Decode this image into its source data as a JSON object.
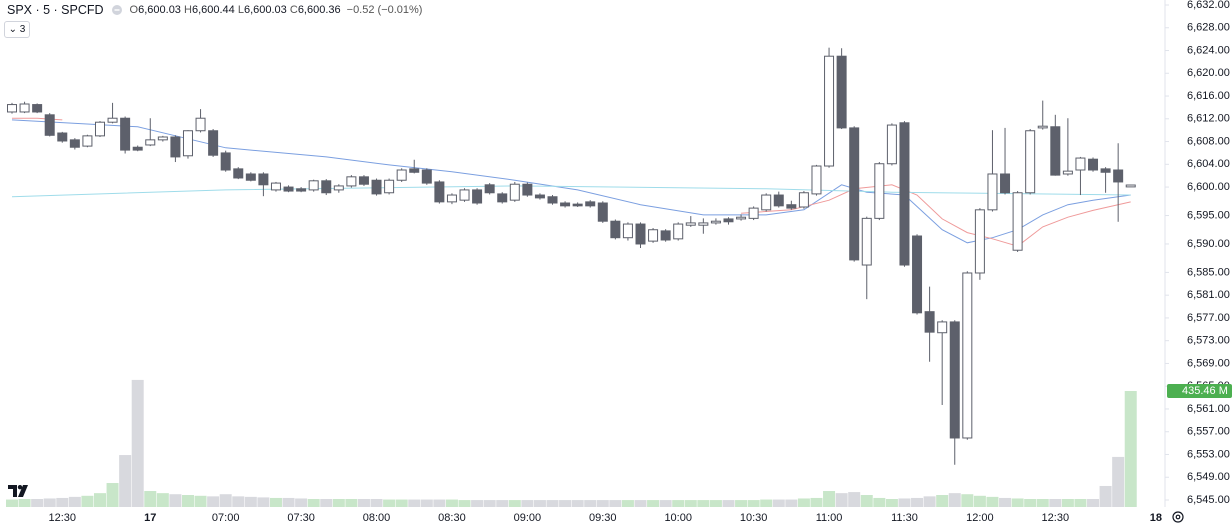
{
  "chart_data": {
    "type": "candlestick",
    "symbol": "SPX · 5 · SPCFD",
    "legend": [
      {
        "key": "O",
        "value": "6,600.03"
      },
      {
        "key": "H",
        "value": "6,600.44"
      },
      {
        "key": "L",
        "value": "6,600.03"
      },
      {
        "key": "C",
        "value": "6,600.36"
      }
    ],
    "change": "−0.52 (−0.01%)",
    "indicator_count": "3",
    "up_color": "#ffffff",
    "down_color": "#5d606b",
    "outline_color": "#5d606b",
    "volume_up_color": "#c8e6c9",
    "volume_down_color": "#d8d9de",
    "ylim": [
      6545,
      6632
    ],
    "yticks": [
      {
        "value": 6632,
        "label": "6,632.00"
      },
      {
        "value": 6628,
        "label": "6,628.00"
      },
      {
        "value": 6624,
        "label": "6,624.00"
      },
      {
        "value": 6620,
        "label": "6,620.00"
      },
      {
        "value": 6616,
        "label": "6,616.00"
      },
      {
        "value": 6612,
        "label": "6,612.00"
      },
      {
        "value": 6608,
        "label": "6,608.00"
      },
      {
        "value": 6604,
        "label": "6,604.00"
      },
      {
        "value": 6600,
        "label": "6,600.00"
      },
      {
        "value": 6595,
        "label": "6,595.00"
      },
      {
        "value": 6590,
        "label": "6,590.00"
      },
      {
        "value": 6585,
        "label": "6,585.00"
      },
      {
        "value": 6581,
        "label": "6,581.00"
      },
      {
        "value": 6577,
        "label": "6,577.00"
      },
      {
        "value": 6573,
        "label": "6,573.00"
      },
      {
        "value": 6569,
        "label": "6,569.00"
      },
      {
        "value": 6565,
        "label": "6,565.00"
      },
      {
        "value": 6561,
        "label": "6,561.00"
      },
      {
        "value": 6557,
        "label": "6,557.00"
      },
      {
        "value": 6553,
        "label": "6,553.00"
      },
      {
        "value": 6549,
        "label": "6,549.00"
      },
      {
        "value": 6545,
        "label": "6,545.00"
      }
    ],
    "categories": [
      null,
      null,
      null,
      null,
      "12:30",
      null,
      null,
      null,
      null,
      null,
      null,
      "17",
      null,
      null,
      null,
      null,
      null,
      "07:00",
      null,
      null,
      null,
      null,
      null,
      "07:30",
      null,
      null,
      null,
      null,
      null,
      "08:00",
      null,
      null,
      null,
      null,
      null,
      "08:30",
      null,
      null,
      null,
      null,
      null,
      "09:00",
      null,
      null,
      null,
      null,
      null,
      "09:30",
      null,
      null,
      null,
      null,
      null,
      "10:00",
      null,
      null,
      null,
      null,
      null,
      "10:30",
      null,
      null,
      null,
      null,
      null,
      "11:00",
      null,
      null,
      null,
      null,
      null,
      "11:30",
      null,
      null,
      null,
      null,
      null,
      "12:00",
      null,
      null,
      null,
      null,
      null,
      "12:30",
      null,
      null,
      null,
      null,
      null,
      null,
      null,
      "18"
    ],
    "bold_categories": [
      "17",
      "18"
    ],
    "ohlc": [
      [
        6613.2,
        6614.8,
        6612.9,
        6614.5
      ],
      [
        6613.2,
        6615.0,
        6613.0,
        6614.6
      ],
      [
        6614.5,
        6614.7,
        6613.0,
        6613.2
      ],
      [
        6612.7,
        6613.0,
        6608.9,
        6609.1
      ],
      [
        6609.5,
        6609.7,
        6607.8,
        6608.1
      ],
      [
        6608.3,
        6608.6,
        6606.6,
        6607.0
      ],
      [
        6607.2,
        6609.2,
        6607.0,
        6609.0
      ],
      [
        6609.0,
        6611.6,
        6608.8,
        6611.4
      ],
      [
        6611.4,
        6614.8,
        6611.2,
        6612.1
      ],
      [
        6612.1,
        6612.4,
        6605.9,
        6606.5
      ],
      [
        6607.0,
        6607.3,
        6606.3,
        6606.5
      ],
      [
        6607.4,
        6612.1,
        6607.2,
        6608.3
      ],
      [
        6608.3,
        6609.0,
        6608.0,
        6608.8
      ],
      [
        6608.8,
        6609.1,
        6604.4,
        6605.3
      ],
      [
        6605.5,
        6610.0,
        6605.0,
        6609.9
      ],
      [
        6609.9,
        6613.7,
        6609.6,
        6612.1
      ],
      [
        6609.9,
        6610.2,
        6605.3,
        6605.6
      ],
      [
        6606.0,
        6606.4,
        6602.7,
        6603.0
      ],
      [
        6603.2,
        6603.5,
        6601.4,
        6601.6
      ],
      [
        6602.3,
        6602.6,
        6601.0,
        6601.2
      ],
      [
        6602.3,
        6602.6,
        6598.4,
        6600.4
      ],
      [
        6599.5,
        6600.9,
        6599.2,
        6600.7
      ],
      [
        6600.0,
        6600.3,
        6599.1,
        6599.3
      ],
      [
        6599.7,
        6600.0,
        6599.1,
        6599.3
      ],
      [
        6599.5,
        6601.3,
        6599.2,
        6601.1
      ],
      [
        6601.1,
        6601.4,
        6598.6,
        6599.0
      ],
      [
        6599.5,
        6600.5,
        6599.0,
        6600.2
      ],
      [
        6600.2,
        6602.1,
        6599.9,
        6601.8
      ],
      [
        6601.8,
        6602.1,
        6600.2,
        6600.5
      ],
      [
        6601.2,
        6601.5,
        6598.5,
        6598.8
      ],
      [
        6599.0,
        6601.5,
        6598.7,
        6601.2
      ],
      [
        6601.2,
        6603.3,
        6600.9,
        6603.0
      ],
      [
        6603.2,
        6604.8,
        6602.4,
        6602.6
      ],
      [
        6603.0,
        6603.3,
        6600.4,
        6600.7
      ],
      [
        6600.9,
        6601.2,
        6597.1,
        6597.4
      ],
      [
        6597.4,
        6598.9,
        6597.0,
        6598.6
      ],
      [
        6597.7,
        6599.8,
        6597.4,
        6599.5
      ],
      [
        6599.5,
        6599.8,
        6596.9,
        6597.2
      ],
      [
        6600.4,
        6600.7,
        6598.7,
        6599.0
      ],
      [
        6598.8,
        6599.1,
        6597.1,
        6597.4
      ],
      [
        6597.7,
        6600.9,
        6597.4,
        6600.5
      ],
      [
        6600.5,
        6600.8,
        6598.3,
        6598.6
      ],
      [
        6598.6,
        6598.9,
        6597.8,
        6598.1
      ],
      [
        6598.3,
        6598.6,
        6596.9,
        6597.2
      ],
      [
        6597.2,
        6597.5,
        6596.4,
        6596.7
      ],
      [
        6597.0,
        6597.3,
        6596.5,
        6596.7
      ],
      [
        6597.4,
        6597.7,
        6596.4,
        6596.7
      ],
      [
        6597.2,
        6597.5,
        6593.7,
        6594.0
      ],
      [
        6594.0,
        6594.3,
        6590.8,
        6591.1
      ],
      [
        6591.1,
        6593.8,
        6590.6,
        6593.5
      ],
      [
        6593.5,
        6593.8,
        6589.3,
        6590.0
      ],
      [
        6590.5,
        6592.8,
        6590.2,
        6592.5
      ],
      [
        6592.3,
        6592.6,
        6590.4,
        6590.7
      ],
      [
        6590.9,
        6593.8,
        6590.6,
        6593.5
      ],
      [
        6593.3,
        6594.9,
        6593.0,
        6593.7
      ],
      [
        6593.3,
        6594.5,
        6591.8,
        6593.7
      ],
      [
        6593.7,
        6594.5,
        6593.4,
        6594.0
      ],
      [
        6594.4,
        6594.7,
        6593.4,
        6593.9
      ],
      [
        6594.4,
        6595.2,
        6594.1,
        6594.7
      ],
      [
        6594.5,
        6596.6,
        6594.2,
        6596.3
      ],
      [
        6596.0,
        6598.9,
        6595.7,
        6598.6
      ],
      [
        6598.6,
        6599.2,
        6596.4,
        6596.7
      ],
      [
        6596.9,
        6597.6,
        6596.0,
        6596.3
      ],
      [
        6596.5,
        6599.3,
        6596.2,
        6599.0
      ],
      [
        6598.8,
        6603.9,
        6598.5,
        6603.7
      ],
      [
        6603.7,
        6624.5,
        6603.4,
        6623.0
      ],
      [
        6623.0,
        6624.4,
        6610.2,
        6610.4
      ],
      [
        6610.4,
        6610.7,
        6586.9,
        6587.2
      ],
      [
        6586.3,
        6594.8,
        6580.3,
        6594.5
      ],
      [
        6594.5,
        6604.4,
        6594.2,
        6604.1
      ],
      [
        6604.1,
        6611.2,
        6603.8,
        6610.9
      ],
      [
        6611.3,
        6611.6,
        6586.0,
        6586.3
      ],
      [
        6591.4,
        6591.7,
        6577.6,
        6577.9
      ],
      [
        6578.1,
        6582.5,
        6569.3,
        6574.5
      ],
      [
        6574.4,
        6576.6,
        6561.7,
        6576.3
      ],
      [
        6576.3,
        6576.6,
        6551.2,
        6555.9
      ],
      [
        6555.9,
        6585.2,
        6555.6,
        6584.9
      ],
      [
        6584.9,
        6596.3,
        6583.7,
        6596.0
      ],
      [
        6596.0,
        6610.0,
        6595.7,
        6602.3
      ],
      [
        6602.3,
        6610.4,
        6598.7,
        6599.0
      ],
      [
        6588.9,
        6599.3,
        6588.6,
        6599.0
      ],
      [
        6599.0,
        6610.2,
        6598.7,
        6609.9
      ],
      [
        6610.4,
        6615.2,
        6610.1,
        6610.7
      ],
      [
        6610.6,
        6612.7,
        6602.0,
        6602.1
      ],
      [
        6602.3,
        6612.1,
        6602.0,
        6602.8
      ],
      [
        6603.0,
        6605.3,
        6598.6,
        6605.1
      ],
      [
        6604.9,
        6605.2,
        6602.7,
        6603.0
      ],
      [
        6603.2,
        6603.5,
        6599.0,
        6602.6
      ],
      [
        6603.0,
        6607.7,
        6593.9,
        6600.9
      ],
      [
        6600.03,
        6600.44,
        6600.03,
        6600.36
      ],
      null,
      null
    ],
    "volume": [
      28,
      30,
      30,
      32,
      34,
      38,
      42,
      52,
      90,
      195,
      477,
      60,
      52,
      48,
      45,
      42,
      40,
      48,
      40,
      38,
      36,
      34,
      34,
      32,
      30,
      30,
      30,
      30,
      30,
      30,
      28,
      28,
      28,
      28,
      28,
      28,
      26,
      26,
      26,
      26,
      26,
      26,
      26,
      26,
      26,
      26,
      26,
      26,
      26,
      26,
      26,
      26,
      26,
      26,
      26,
      26,
      26,
      26,
      26,
      26,
      28,
      28,
      28,
      32,
      34,
      60,
      52,
      56,
      45,
      34,
      30,
      32,
      34,
      40,
      45,
      52,
      48,
      42,
      38,
      34,
      32,
      30,
      30,
      30,
      30,
      30,
      30,
      79,
      188,
      435.46,
      null,
      null
    ],
    "last_volume_label": "435.46 M",
    "volume_label_color": "#4caf50",
    "lines": [
      {
        "color": "#7b9fe0",
        "x": [
          0,
          10,
          17,
          25,
          30,
          35,
          40,
          45,
          50,
          55,
          60,
          63,
          66,
          68,
          71,
          74,
          76,
          78,
          80,
          82,
          84,
          86,
          89
        ],
        "values": [
          6611.8,
          6610.6,
          6606.9,
          6605.3,
          6603.9,
          6602.7,
          6601.2,
          6599.5,
          6596.9,
          6595.1,
          6595.1,
          6596.0,
          6600.4,
          6599.1,
          6598.6,
          6592.5,
          6590.2,
          6591.1,
          6592.5,
          6595.1,
          6596.9,
          6597.7,
          6598.6
        ]
      },
      {
        "color": "#ef9a9a",
        "x": [
          0,
          2,
          4,
          5,
          58,
          62,
          65,
          67,
          70,
          72,
          74,
          76,
          78,
          80,
          82,
          84,
          86,
          89
        ],
        "values": [
          6612.1,
          6612.1,
          6611.8,
          null,
          6595.4,
          6596.0,
          6597.7,
          6599.7,
          6600.4,
          6598.6,
          6594.4,
          6592.0,
          6590.9,
          6589.6,
          6593.0,
          6594.7,
          6595.9,
          6597.4
        ]
      },
      {
        "color": "#9fdcea",
        "x": [
          0,
          17,
          40,
          60,
          70,
          89
        ],
        "values": [
          6598.3,
          6599.5,
          6600.2,
          6599.7,
          6599.1,
          6598.6
        ]
      }
    ]
  }
}
